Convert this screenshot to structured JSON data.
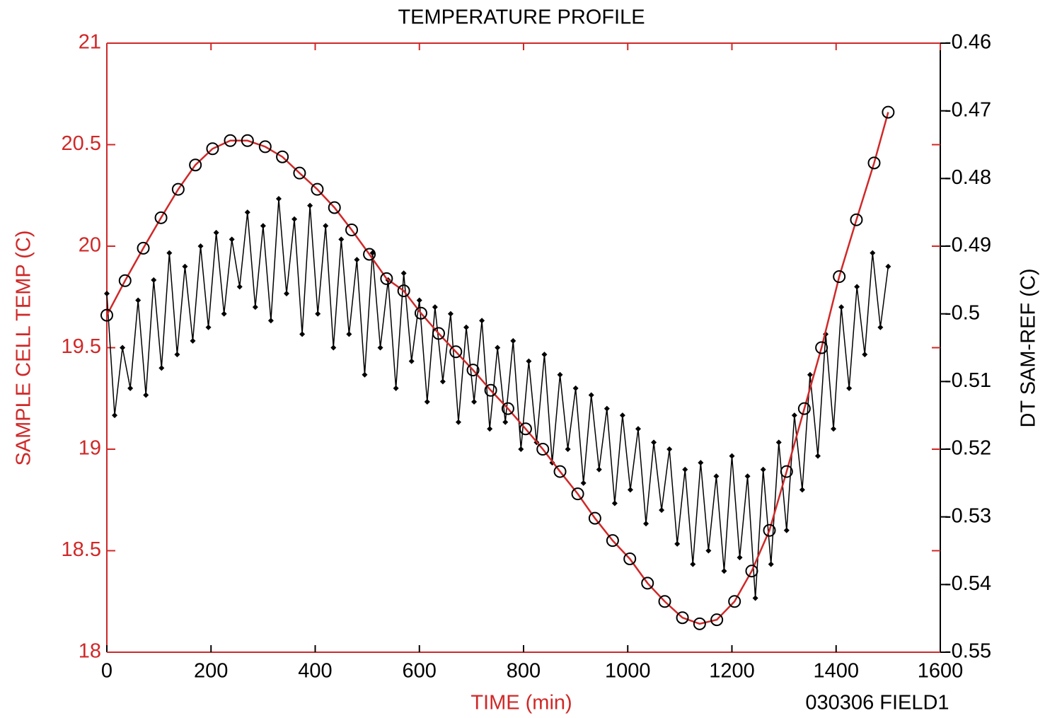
{
  "chart_data": {
    "type": "line",
    "title": "TEMPERATURE PROFILE",
    "x_label": "TIME (min)",
    "y_label": "SAMPLE CELL TEMP (C)",
    "y2_label": "DT SAM-REF (C)",
    "annotation": "030306 FIELD1",
    "xlim": [
      0,
      1600
    ],
    "xticks": [
      0,
      200,
      400,
      600,
      800,
      1000,
      1200,
      1400,
      1600
    ],
    "ylim": [
      18,
      21
    ],
    "yticks": [
      18,
      18.5,
      19,
      19.5,
      20,
      20.5,
      21
    ],
    "y2lim": [
      -0.55,
      -0.46
    ],
    "y2ticks": [
      -0.55,
      -0.54,
      -0.53,
      -0.52,
      -0.51,
      -0.5,
      -0.49,
      -0.48,
      -0.47,
      -0.46
    ],
    "series": [
      {
        "color": "#d02828",
        "marker_color": "#000000",
        "x": [
          0,
          35,
          70,
          104,
          137,
          170,
          203,
          237,
          270,
          304,
          337,
          370,
          404,
          437,
          470,
          504,
          537,
          570,
          603,
          637,
          670,
          703,
          737,
          770,
          804,
          837,
          870,
          904,
          937,
          971,
          1004,
          1038,
          1071,
          1105,
          1138,
          1171,
          1205,
          1238,
          1272,
          1305,
          1339,
          1372,
          1406,
          1439,
          1473,
          1500
        ],
        "values": [
          19.66,
          19.83,
          19.99,
          20.14,
          20.28,
          20.4,
          20.48,
          20.52,
          20.52,
          20.49,
          20.44,
          20.36,
          20.28,
          20.19,
          20.08,
          19.96,
          19.84,
          19.78,
          19.67,
          19.57,
          19.48,
          19.39,
          19.29,
          19.2,
          19.1,
          19.0,
          18.89,
          18.78,
          18.66,
          18.55,
          18.46,
          18.34,
          18.25,
          18.17,
          18.14,
          18.16,
          18.25,
          18.4,
          18.6,
          18.89,
          19.2,
          19.5,
          19.85,
          20.13,
          20.41,
          20.66
        ]
      },
      {
        "color": "#000000",
        "axis": "y2",
        "x": [
          0,
          15,
          30,
          45,
          60,
          75,
          90,
          105,
          120,
          135,
          150,
          165,
          180,
          195,
          210,
          225,
          240,
          255,
          270,
          285,
          300,
          315,
          330,
          345,
          360,
          375,
          390,
          405,
          420,
          435,
          450,
          465,
          480,
          495,
          510,
          525,
          540,
          555,
          570,
          585,
          600,
          615,
          630,
          645,
          660,
          675,
          690,
          705,
          720,
          735,
          750,
          765,
          780,
          795,
          810,
          825,
          840,
          855,
          870,
          885,
          900,
          915,
          930,
          945,
          960,
          975,
          990,
          1005,
          1020,
          1035,
          1050,
          1065,
          1080,
          1095,
          1110,
          1125,
          1140,
          1155,
          1170,
          1185,
          1200,
          1215,
          1230,
          1245,
          1260,
          1275,
          1290,
          1305,
          1320,
          1335,
          1350,
          1365,
          1380,
          1395,
          1410,
          1425,
          1440,
          1455,
          1470,
          1485,
          1500
        ],
        "values": [
          -0.497,
          -0.515,
          -0.505,
          -0.511,
          -0.498,
          -0.512,
          -0.495,
          -0.508,
          -0.491,
          -0.506,
          -0.493,
          -0.504,
          -0.49,
          -0.502,
          -0.488,
          -0.5,
          -0.489,
          -0.496,
          -0.485,
          -0.499,
          -0.487,
          -0.501,
          -0.483,
          -0.497,
          -0.486,
          -0.503,
          -0.484,
          -0.5,
          -0.487,
          -0.505,
          -0.489,
          -0.503,
          -0.492,
          -0.509,
          -0.491,
          -0.505,
          -0.495,
          -0.511,
          -0.494,
          -0.507,
          -0.498,
          -0.513,
          -0.499,
          -0.51,
          -0.5,
          -0.516,
          -0.502,
          -0.513,
          -0.501,
          -0.517,
          -0.505,
          -0.516,
          -0.504,
          -0.52,
          -0.507,
          -0.519,
          -0.506,
          -0.522,
          -0.509,
          -0.52,
          -0.511,
          -0.525,
          -0.512,
          -0.523,
          -0.514,
          -0.528,
          -0.515,
          -0.526,
          -0.517,
          -0.531,
          -0.519,
          -0.529,
          -0.52,
          -0.534,
          -0.523,
          -0.537,
          -0.522,
          -0.535,
          -0.524,
          -0.538,
          -0.521,
          -0.536,
          -0.524,
          -0.542,
          -0.523,
          -0.537,
          -0.519,
          -0.532,
          -0.515,
          -0.526,
          -0.509,
          -0.521,
          -0.503,
          -0.517,
          -0.499,
          -0.511,
          -0.496,
          -0.506,
          -0.491,
          -0.502,
          -0.493
        ]
      }
    ]
  }
}
